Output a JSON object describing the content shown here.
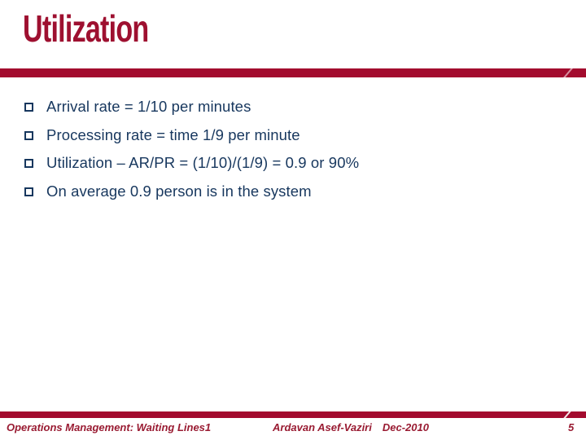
{
  "slide": {
    "title": "Utilization",
    "bullets": [
      "Arrival rate = 1/10 per minutes",
      "Processing rate = time 1/9 per minute",
      "Utilization – AR/PR = (1/10)/(1/9) = 0.9 or 90%",
      "On average 0.9 person is in the system"
    ],
    "footer": {
      "left": "Operations Management: Waiting Lines1",
      "center_name": "Ardavan Asef-Vaziri",
      "center_date": "Dec-2010",
      "page_number": "5"
    },
    "colors": {
      "accent_red": "#A30B2E",
      "title_red": "#9E1030",
      "body_navy": "#17375E",
      "footer_red": "#991B32"
    }
  }
}
